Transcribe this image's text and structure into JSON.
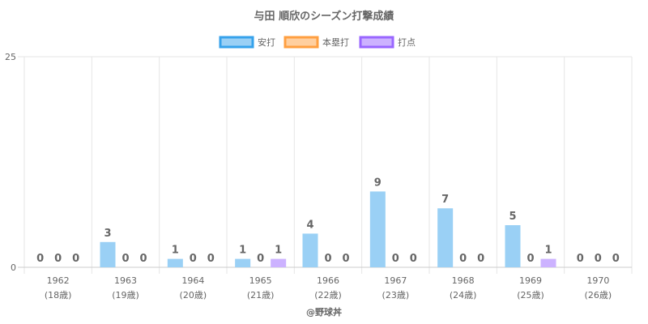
{
  "chart_data": {
    "type": "bar",
    "title": "与田 順欣のシーズン打撃成績",
    "categories": [
      "1962",
      "1963",
      "1964",
      "1965",
      "1966",
      "1967",
      "1968",
      "1969",
      "1970"
    ],
    "sublabels": [
      "(18歳)",
      "(19歳)",
      "(20歳)",
      "(21歳)",
      "(22歳)",
      "(23歳)",
      "(24歳)",
      "(25歳)",
      "(26歳)"
    ],
    "series": [
      {
        "name": "安打",
        "values": [
          0,
          3,
          1,
          1,
          4,
          9,
          7,
          5,
          0
        ],
        "fill": "#9ad0f5",
        "stroke": "#36a2eb"
      },
      {
        "name": "本塁打",
        "values": [
          0,
          0,
          0,
          0,
          0,
          0,
          0,
          0,
          0
        ],
        "fill": "#ffcf9f",
        "stroke": "#ff9f40"
      },
      {
        "name": "打点",
        "values": [
          0,
          0,
          0,
          1,
          0,
          0,
          0,
          1,
          0
        ],
        "fill": "#ccb2ff",
        "stroke": "#9966ff"
      }
    ],
    "ylim": [
      0,
      25
    ],
    "yticks": [
      0,
      25
    ],
    "grid": true,
    "legend_position": "top"
  },
  "credit": "@野球丼"
}
